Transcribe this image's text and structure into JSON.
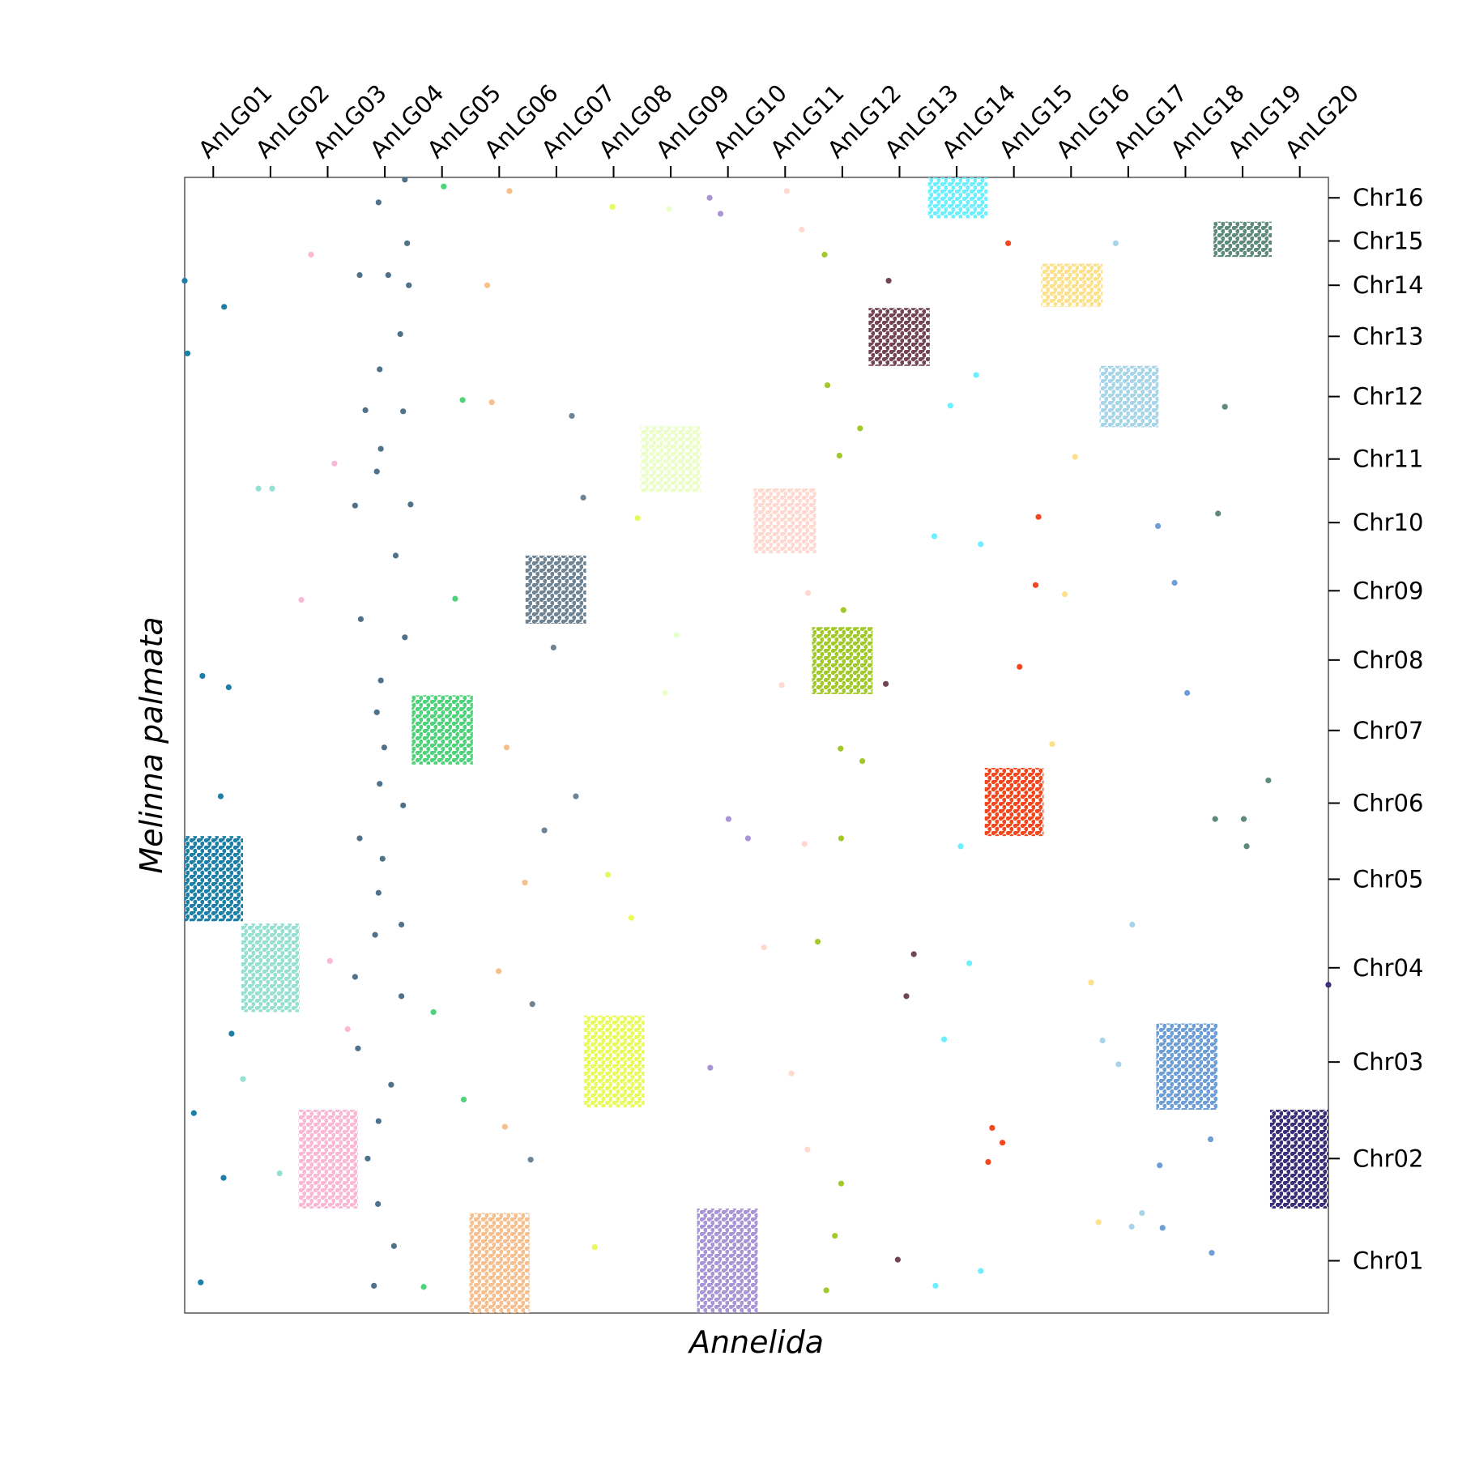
{
  "chart_data": {
    "type": "dotplot",
    "xlabel": "Annelida",
    "ylabel": "Melinna palmata",
    "xlim": [
      0,
      20
    ],
    "ylim": [
      0,
      100
    ],
    "xticks": [
      {
        "value": 0.5,
        "label": "AnLG01"
      },
      {
        "value": 1.5,
        "label": "AnLG02"
      },
      {
        "value": 2.5,
        "label": "AnLG03"
      },
      {
        "value": 3.5,
        "label": "AnLG04"
      },
      {
        "value": 4.5,
        "label": "AnLG05"
      },
      {
        "value": 5.5,
        "label": "AnLG06"
      },
      {
        "value": 6.5,
        "label": "AnLG07"
      },
      {
        "value": 7.5,
        "label": "AnLG08"
      },
      {
        "value": 8.5,
        "label": "AnLG09"
      },
      {
        "value": 9.5,
        "label": "AnLG10"
      },
      {
        "value": 10.5,
        "label": "AnLG11"
      },
      {
        "value": 11.5,
        "label": "AnLG12"
      },
      {
        "value": 12.5,
        "label": "AnLG13"
      },
      {
        "value": 13.5,
        "label": "AnLG14"
      },
      {
        "value": 14.5,
        "label": "AnLG15"
      },
      {
        "value": 15.5,
        "label": "AnLG16"
      },
      {
        "value": 16.5,
        "label": "AnLG17"
      },
      {
        "value": 17.5,
        "label": "AnLG18"
      },
      {
        "value": 18.5,
        "label": "AnLG19"
      },
      {
        "value": 19.5,
        "label": "AnLG20"
      }
    ],
    "yticks": [
      {
        "value": 4.6,
        "label": "Chr01"
      },
      {
        "value": 13.6,
        "label": "Chr02"
      },
      {
        "value": 22.1,
        "label": "Chr03"
      },
      {
        "value": 30.4,
        "label": "Chr04"
      },
      {
        "value": 38.2,
        "label": "Chr05"
      },
      {
        "value": 44.9,
        "label": "Chr06"
      },
      {
        "value": 51.3,
        "label": "Chr07"
      },
      {
        "value": 57.5,
        "label": "Chr08"
      },
      {
        "value": 63.6,
        "label": "Chr09"
      },
      {
        "value": 69.6,
        "label": "Chr10"
      },
      {
        "value": 75.2,
        "label": "Chr11"
      },
      {
        "value": 80.7,
        "label": "Chr12"
      },
      {
        "value": 86.0,
        "label": "Chr13"
      },
      {
        "value": 90.5,
        "label": "Chr14"
      },
      {
        "value": 94.4,
        "label": "Chr15"
      },
      {
        "value": 98.2,
        "label": "Chr16"
      }
    ],
    "series": [
      {
        "color": "#1b7fa8",
        "block_x": [
          0,
          1.02
        ],
        "block_y": [
          34.5,
          42.0
        ],
        "x": [
          0,
          0.69,
          0.05,
          0.31,
          0.77,
          0.63,
          0.82,
          0.16,
          0.68,
          0.28
        ],
        "y": [
          90.9,
          88.6,
          84.5,
          56.1,
          55.1,
          45.5,
          24.6,
          17.6,
          11.9,
          2.7
        ]
      },
      {
        "color": "#96e0d3",
        "block_x": [
          0.99,
          2.01
        ],
        "block_y": [
          26.5,
          34.3
        ],
        "x": [
          1.29,
          1.53,
          1.02,
          1.66
        ],
        "y": [
          72.6,
          72.6,
          20.6,
          12.3
        ]
      },
      {
        "color": "#f9b8d3",
        "block_x": [
          1.99,
          3.03
        ],
        "block_y": [
          9.2,
          17.9
        ],
        "x": [
          2.21,
          2.62,
          2.04,
          2.54,
          2.85
        ],
        "y": [
          93.2,
          74.8,
          62.8,
          31.0,
          25.0
        ]
      },
      {
        "color": "#50718a",
        "x": [
          3.39,
          3.85,
          3.89,
          3.06,
          3.56,
          3.92,
          3.77,
          3.41,
          3.16,
          3.82,
          3.43,
          3.36,
          2.98,
          3.95,
          3.69,
          3.08,
          3.85,
          3.43,
          3.36,
          3.49,
          3.41,
          3.82,
          3.06,
          3.46,
          3.39,
          3.79,
          3.33,
          2.98,
          3.79,
          3.03,
          3.61,
          3.39,
          3.2,
          3.38,
          3.66,
          3.31
        ],
        "y": [
          97.8,
          99.8,
          94.2,
          91.4,
          91.4,
          90.5,
          86.2,
          83.1,
          79.5,
          79.4,
          76.1,
          74.1,
          71.1,
          71.2,
          66.7,
          61.1,
          59.5,
          55.7,
          52.9,
          49.8,
          46.6,
          44.7,
          41.8,
          40.0,
          37.0,
          34.2,
          33.3,
          29.6,
          27.9,
          23.3,
          20.1,
          16.9,
          13.6,
          9.6,
          5.9,
          2.4
        ]
      },
      {
        "color": "#4ed27a",
        "block_x": [
          3.97,
          5.04
        ],
        "block_y": [
          48.3,
          54.4
        ],
        "x": [
          4.53,
          4.86,
          4.73,
          4.35,
          4.88,
          4.18
        ],
        "y": [
          99.2,
          80.4,
          62.9,
          26.5,
          18.8,
          2.3
        ]
      },
      {
        "color": "#f7bf8e",
        "block_x": [
          4.98,
          6.03
        ],
        "block_y": [
          0,
          8.8
        ],
        "x": [
          5.68,
          5.29,
          5.37,
          5.63,
          5.95,
          5.49,
          5.6
        ],
        "y": [
          98.8,
          90.5,
          80.2,
          49.8,
          37.9,
          30.1,
          16.4
        ]
      },
      {
        "color": "#6e8394",
        "block_x": [
          5.96,
          7.02
        ],
        "block_y": [
          60.7,
          66.7
        ],
        "x": [
          6.77,
          6.97,
          6.45,
          6.84,
          6.29,
          6.08,
          6.05
        ],
        "y": [
          79.0,
          71.8,
          58.6,
          45.5,
          42.5,
          27.2,
          13.5
        ]
      },
      {
        "color": "#e8fb5a",
        "block_x": [
          6.98,
          8.04
        ],
        "block_y": [
          18.1,
          26.2
        ],
        "x": [
          7.48,
          7.92,
          7.4,
          7.81,
          7.17
        ],
        "y": [
          97.4,
          70.0,
          38.6,
          34.8,
          5.8
        ]
      },
      {
        "color": "#eaffc8",
        "block_x": [
          7.97,
          9.03
        ],
        "block_y": [
          72.3,
          78.1
        ],
        "x": [
          8.47,
          8.6,
          8.4
        ],
        "y": [
          97.2,
          59.7,
          54.6
        ]
      },
      {
        "color": "#a994d6",
        "block_x": [
          8.96,
          10.02
        ],
        "block_y": [
          0,
          9.2
        ],
        "x": [
          9.18,
          9.37,
          9.51,
          9.85,
          9.19
        ],
        "y": [
          98.2,
          96.8,
          43.5,
          41.8,
          21.6
        ]
      },
      {
        "color": "#ffd8cf",
        "block_x": [
          9.95,
          11.04
        ],
        "block_y": [
          66.9,
          72.6
        ],
        "x": [
          10.53,
          10.79,
          10.9,
          10.44,
          10.84,
          10.13,
          10.61,
          10.89
        ],
        "y": [
          98.8,
          95.4,
          63.4,
          55.3,
          41.3,
          32.2,
          21.1,
          14.4
        ]
      },
      {
        "color": "#a2c92a",
        "block_x": [
          10.97,
          12.03
        ],
        "block_y": [
          54.5,
          60.4
        ],
        "x": [
          11.19,
          11.24,
          11.81,
          11.45,
          11.52,
          11.47,
          11.85,
          11.48,
          11.07,
          11.48,
          11.37,
          11.22
        ],
        "y": [
          93.2,
          81.7,
          77.9,
          75.5,
          61.9,
          49.7,
          48.6,
          41.8,
          32.7,
          11.4,
          6.8,
          2.0
        ]
      },
      {
        "color": "#734455",
        "block_x": [
          11.96,
          13.03
        ],
        "block_y": [
          83.4,
          88.5
        ],
        "x": [
          12.31,
          12.26,
          12.75,
          12.62,
          12.47
        ],
        "y": [
          90.9,
          55.4,
          31.6,
          27.9,
          4.7
        ]
      },
      {
        "color": "#6cf0ff",
        "block_x": [
          13.0,
          14.04
        ],
        "block_y": [
          96.4,
          100
        ],
        "x": [
          13.39,
          13.84,
          13.11,
          13.92,
          13.57,
          13.72,
          13.28,
          13.13,
          13.92
        ],
        "y": [
          79.9,
          82.6,
          68.4,
          67.7,
          41.1,
          30.8,
          24.1,
          2.4,
          3.7
        ]
      },
      {
        "color": "#f4471e",
        "block_x": [
          13.99,
          15.02
        ],
        "block_y": [
          42.0,
          48.0
        ],
        "x": [
          14.4,
          14.93,
          14.88,
          14.6,
          14.12,
          14.3,
          14.05
        ],
        "y": [
          94.2,
          70.1,
          64.1,
          56.9,
          16.3,
          15.0,
          13.3
        ]
      },
      {
        "color": "#fde18a",
        "block_x": [
          14.98,
          16.05
        ],
        "block_y": [
          88.6,
          92.4
        ],
        "x": [
          15.57,
          15.39,
          15.17,
          15.85,
          15.98
        ],
        "y": [
          75.4,
          63.3,
          50.1,
          29.1,
          8.0
        ]
      },
      {
        "color": "#a7d5e8",
        "block_x": [
          16.0,
          17.03
        ],
        "block_y": [
          78.0,
          83.4
        ],
        "x": [
          16.28,
          16.57,
          16.05,
          16.33,
          16.74,
          16.56
        ],
        "y": [
          94.2,
          34.2,
          24.0,
          21.9,
          8.8,
          7.6
        ]
      },
      {
        "color": "#6d9ed6",
        "block_x": [
          16.99,
          18.06
        ],
        "block_y": [
          17.9,
          25.5
        ],
        "x": [
          17.02,
          17.31,
          17.53,
          17.94,
          17.05,
          17.1,
          17.96
        ],
        "y": [
          69.3,
          64.3,
          54.6,
          15.3,
          13.0,
          7.5,
          5.3
        ]
      },
      {
        "color": "#5e8a7b",
        "block_x": [
          17.99,
          19.01
        ],
        "block_y": [
          93.0,
          96.1
        ],
        "x": [
          18.19,
          18.07,
          18.95,
          18.02,
          18.52,
          18.57
        ],
        "y": [
          79.8,
          70.4,
          46.9,
          43.5,
          43.5,
          41.1
        ]
      },
      {
        "color": "#3a2e7a",
        "block_x": [
          18.98,
          20
        ],
        "block_y": [
          9.2,
          17.9
        ],
        "x": [
          20.0
        ],
        "y": [
          28.9
        ]
      }
    ]
  }
}
